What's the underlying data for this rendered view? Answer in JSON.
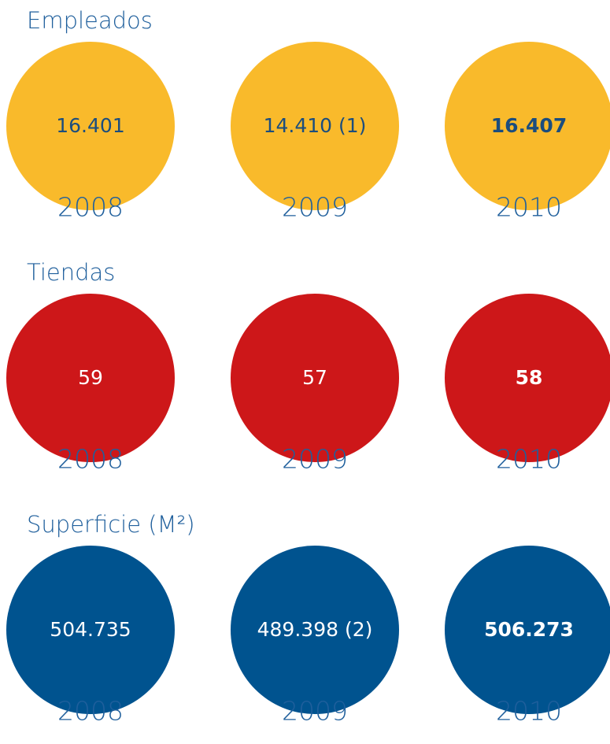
{
  "sections": [
    {
      "title": "Empleados",
      "circle_color": "#f9ba2b",
      "text_color": "#1b4d7e",
      "items": [
        {
          "value": "16.401",
          "year": "2008"
        },
        {
          "value": "14.410 (1)",
          "year": "2009"
        },
        {
          "value": "16.407",
          "year": "2010"
        }
      ]
    },
    {
      "title": "Tiendas",
      "circle_color": "#cd1719",
      "text_color": "#ffffff",
      "items": [
        {
          "value": "59",
          "year": "2008"
        },
        {
          "value": "57",
          "year": "2009"
        },
        {
          "value": "58",
          "year": "2010"
        }
      ]
    },
    {
      "title": "Superficie (M²)",
      "circle_color": "#00538f",
      "text_color": "#ffffff",
      "items": [
        {
          "value": "504.735",
          "year": "2008"
        },
        {
          "value": "489.398 (2)",
          "year": "2009"
        },
        {
          "value": "506.273",
          "year": "2010"
        }
      ]
    }
  ]
}
